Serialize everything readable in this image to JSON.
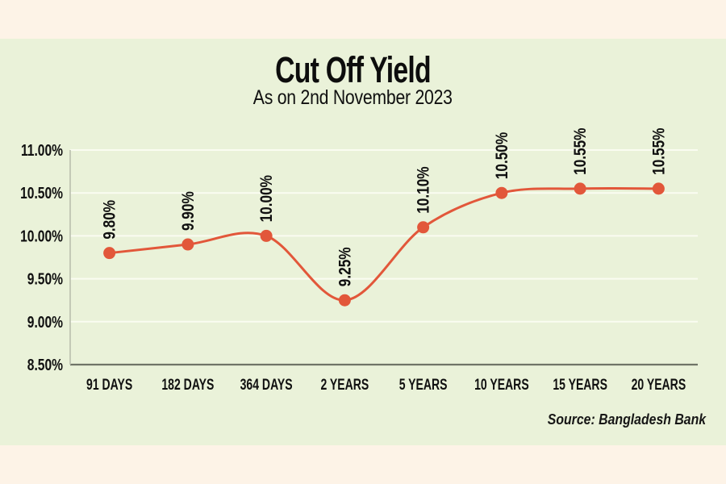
{
  "page": {
    "background_color": "#fdf3e7",
    "panel_color": "#eaf2d9"
  },
  "chart_data": {
    "type": "line",
    "title": "Cut Off Yield",
    "subtitle": "As on 2nd November 2023",
    "source": "Source: Bangladesh Bank",
    "categories": [
      "91 DAYS",
      "182 DAYS",
      "364 DAYS",
      "2 YEARS",
      "5 YEARS",
      "10 YEARS",
      "15 YEARS",
      "20 YEARS"
    ],
    "values": [
      9.8,
      9.9,
      10.0,
      9.25,
      10.1,
      10.5,
      10.55,
      10.55
    ],
    "point_labels": [
      "9.80%",
      "9.90%",
      "10.00%",
      "9.25%",
      "10.10%",
      "10.50%",
      "10.55%",
      "10.55%"
    ],
    "y_ticks": [
      {
        "value": 11.0,
        "label": "11.00%"
      },
      {
        "value": 10.5,
        "label": "10.50%"
      },
      {
        "value": 10.0,
        "label": "10.00%"
      },
      {
        "value": 9.5,
        "label": "9.50%"
      },
      {
        "value": 9.0,
        "label": "9.00%"
      },
      {
        "value": 8.5,
        "label": "8.50%"
      }
    ],
    "ylim": [
      8.5,
      11.0
    ],
    "xlabel": "",
    "ylabel": "",
    "grid": true,
    "legend": "none",
    "colors": {
      "line": "#e2573a",
      "point": "#e2573a",
      "gridline": "#fafcf1",
      "y_axis_line": "#b9bfae",
      "x_axis_line": "#6f7467",
      "text": "#101010"
    }
  }
}
